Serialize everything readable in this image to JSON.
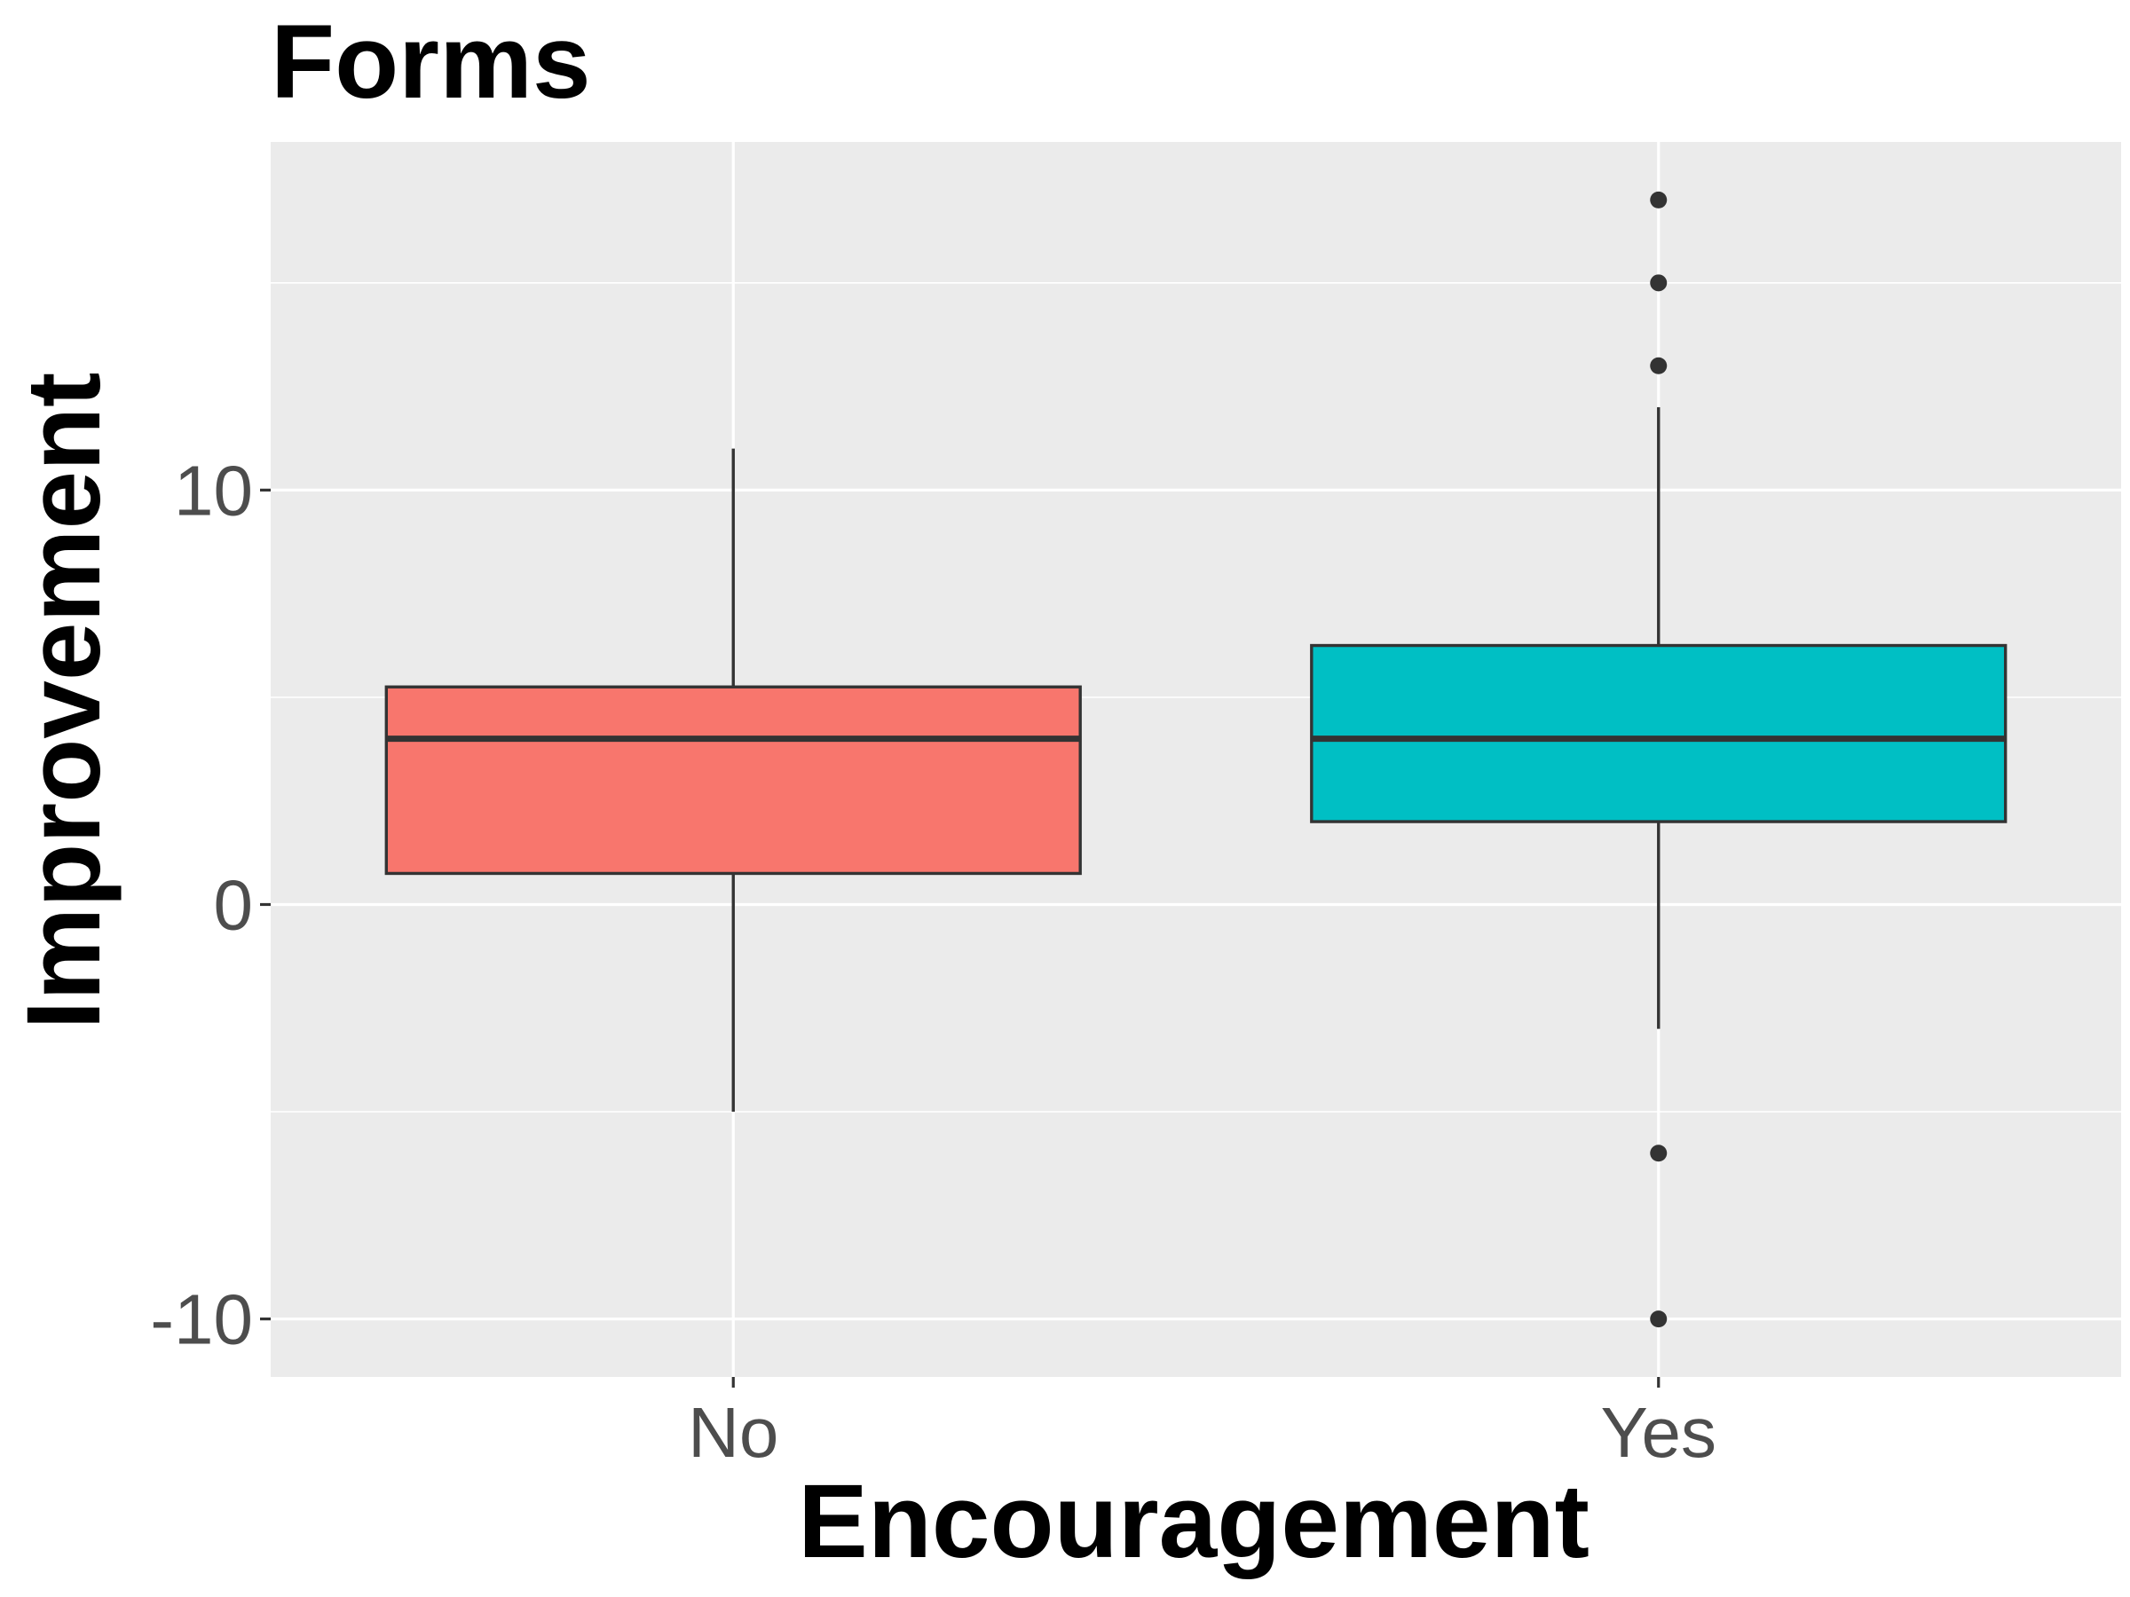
{
  "chart_data": {
    "type": "boxplot",
    "title": "Forms",
    "xlabel": "Encouragement",
    "ylabel": "Improvement",
    "categories": [
      "No",
      "Yes"
    ],
    "ylim": [
      -11.4,
      18.4
    ],
    "yticks": [
      -10,
      0,
      10
    ],
    "ytick_labels": [
      "-10",
      "0",
      "10"
    ],
    "grid": true,
    "panel_background": "#ebebeb",
    "grid_color": "#ffffff",
    "box_outline_color": "#333333",
    "series": [
      {
        "category": "No",
        "color": "#f8766d",
        "whisker_low": -5,
        "q1": 0.75,
        "median": 4,
        "q3": 5.25,
        "whisker_high": 11,
        "outliers": []
      },
      {
        "category": "Yes",
        "color": "#00bfc4",
        "whisker_low": -3,
        "q1": 2,
        "median": 4,
        "q3": 6.25,
        "whisker_high": 12,
        "outliers": [
          17,
          15,
          13,
          -6,
          -10
        ]
      }
    ]
  }
}
